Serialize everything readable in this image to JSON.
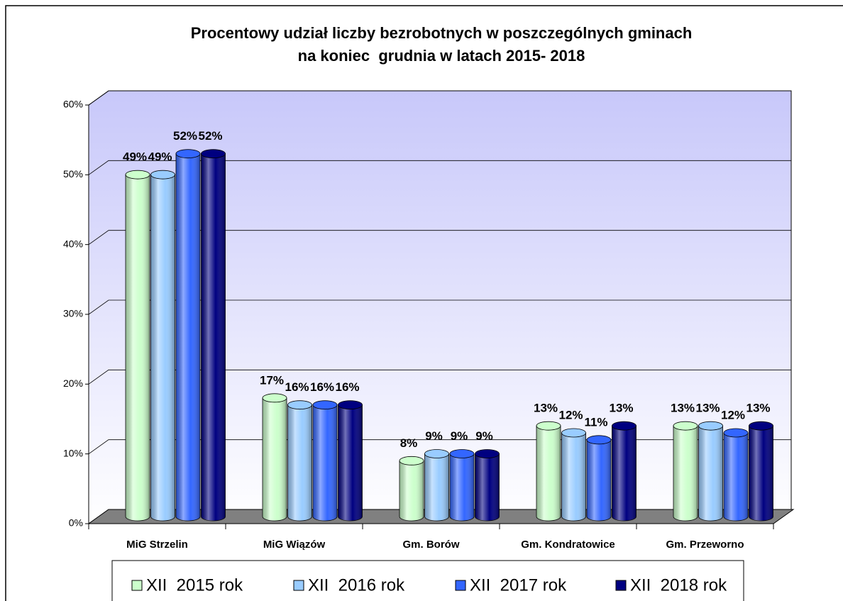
{
  "chart_data": {
    "type": "bar3d",
    "title": [
      "Procentowy udział liczby bezrobotnych w poszczególnych gminach",
      "na koniec  grudnia w latach 2015- 2018"
    ],
    "categories": [
      "MiG Strzelin",
      "MiG Wiązów",
      "Gm. Borów",
      "Gm. Kondratowice",
      "Gm. Przeworno"
    ],
    "series": [
      {
        "name": "XII  2015 rok",
        "color": "#ccffcc",
        "values": [
          49,
          17,
          8,
          13,
          13
        ],
        "value_labels": [
          "49%",
          "17%",
          "8%",
          "13%",
          "13%"
        ]
      },
      {
        "name": "XII  2016 rok",
        "color": "#99ccff",
        "values": [
          49,
          16,
          9,
          12,
          13
        ],
        "value_labels": [
          "49%",
          "16%",
          "9%",
          "12%",
          "13%"
        ]
      },
      {
        "name": "XII  2017 rok",
        "color": "#3366ff",
        "values": [
          52,
          16,
          9,
          11,
          12
        ],
        "value_labels": [
          "52%",
          "16%",
          "9%",
          "11%",
          "12%"
        ]
      },
      {
        "name": "XII  2018 rok",
        "color": "#000080",
        "values": [
          52,
          16,
          9,
          13,
          13
        ],
        "value_labels": [
          "52%",
          "16%",
          "9%",
          "13%",
          "13%"
        ]
      }
    ],
    "ylim": [
      0,
      60
    ],
    "yticks": [
      {
        "value": 0,
        "label": "0%"
      },
      {
        "value": 10,
        "label": "10%"
      },
      {
        "value": 20,
        "label": "20%"
      },
      {
        "value": 30,
        "label": "30%"
      },
      {
        "value": 40,
        "label": "40%"
      },
      {
        "value": 50,
        "label": "50%"
      },
      {
        "value": 60,
        "label": "60%"
      }
    ],
    "grid": true,
    "legend": "bottom"
  }
}
